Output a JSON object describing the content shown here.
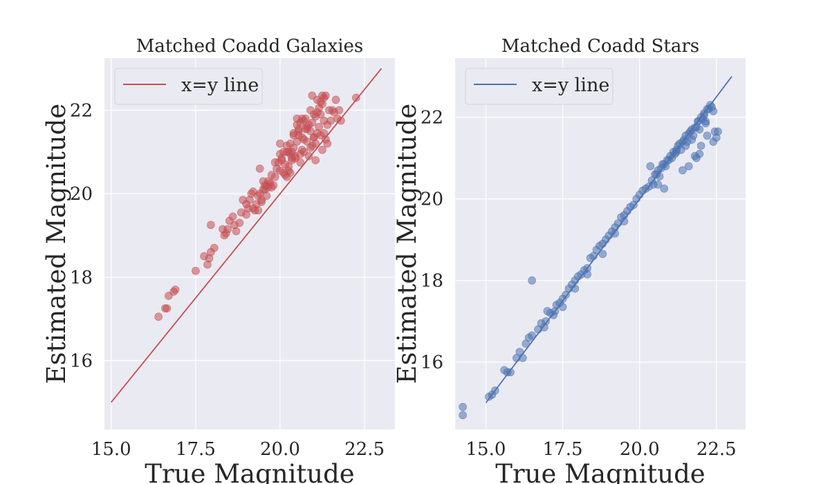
{
  "chart_data": [
    {
      "type": "scatter",
      "title": "Matched Coadd Galaxies",
      "xlabel": "True Magnitude",
      "ylabel": "Estimated Magnitude",
      "xlim": [
        14.8,
        23.4
      ],
      "ylim": [
        14.35,
        23.25
      ],
      "xticks": [
        15.0,
        17.5,
        20.0,
        22.5
      ],
      "xtick_labels": [
        "15.0",
        "17.5",
        "20.0",
        "22.5"
      ],
      "yticks": [
        16,
        18,
        20,
        22
      ],
      "ytick_labels": [
        "16",
        "18",
        "20",
        "22"
      ],
      "grid": true,
      "legend_position": "top-left",
      "reference_line": {
        "name": "x=y line",
        "x": [
          15.0,
          23.0
        ],
        "y": [
          15.0,
          23.0
        ],
        "color": "#c44e52"
      },
      "series": [
        {
          "marker_color": "#c44e52",
          "x": [
            16.4,
            16.6,
            16.65,
            16.7,
            16.85,
            16.9,
            17.5,
            17.75,
            17.85,
            17.9,
            17.95,
            18.05,
            17.95,
            18.3,
            18.35,
            18.4,
            18.45,
            18.5,
            18.6,
            18.65,
            18.7,
            18.8,
            18.85,
            18.9,
            19.0,
            19.0,
            19.05,
            19.1,
            19.15,
            19.2,
            19.2,
            19.25,
            19.3,
            19.35,
            19.4,
            19.45,
            19.5,
            19.5,
            19.55,
            19.6,
            19.6,
            19.65,
            19.7,
            19.75,
            19.8,
            19.85,
            19.9,
            19.95,
            20.0,
            20.0,
            20.05,
            20.1,
            20.15,
            20.2,
            20.2,
            20.25,
            20.3,
            20.3,
            20.35,
            20.4,
            20.45,
            20.5,
            20.55,
            20.6,
            20.65,
            20.7,
            20.75,
            20.8,
            20.85,
            20.9,
            20.95,
            21.0,
            21.05,
            21.1,
            21.15,
            21.2,
            21.25,
            21.3,
            21.35,
            21.4,
            21.5,
            21.6,
            21.7,
            20.2,
            20.4,
            20.6,
            20.8,
            21.0,
            21.2,
            20.3,
            20.5,
            20.7,
            20.9,
            21.1,
            21.3,
            20.35,
            20.55,
            20.75,
            20.95,
            21.15,
            21.45,
            20.45,
            20.65,
            20.85,
            21.05,
            21.25,
            19.85,
            20.05,
            20.25,
            19.75,
            19.65,
            19.55,
            19.45,
            19.35,
            19.4,
            20.6,
            20.95,
            21.35,
            21.8,
            22.25,
            20.0,
            20.1,
            20.15,
            20.4,
            20.5,
            20.7,
            21.0,
            21.2,
            21.25,
            21.4,
            21.55,
            21.65,
            21.75,
            20.25,
            20.35,
            20.55,
            20.65,
            20.8,
            20.9,
            21.05,
            21.1,
            21.3
          ],
          "y": [
            17.05,
            17.25,
            17.25,
            17.55,
            17.65,
            17.7,
            18.15,
            18.5,
            18.3,
            18.45,
            18.6,
            18.7,
            19.25,
            19.15,
            19.0,
            19.05,
            19.15,
            19.35,
            19.45,
            19.25,
            19.1,
            19.3,
            19.55,
            19.85,
            19.75,
            19.5,
            19.65,
            19.85,
            20.0,
            19.65,
            20.05,
            19.6,
            19.75,
            19.95,
            20.0,
            19.85,
            20.1,
            20.3,
            20.2,
            19.95,
            20.2,
            20.15,
            20.25,
            20.15,
            20.2,
            20.4,
            20.6,
            20.75,
            20.55,
            20.95,
            20.85,
            20.5,
            20.7,
            20.4,
            21.0,
            20.65,
            20.5,
            20.95,
            20.8,
            21.1,
            20.85,
            21.25,
            21.4,
            20.95,
            21.05,
            21.3,
            21.55,
            21.25,
            20.9,
            21.5,
            21.15,
            21.35,
            21.2,
            21.45,
            21.6,
            21.4,
            21.05,
            21.75,
            21.3,
            21.65,
            21.75,
            21.95,
            21.8,
            21.15,
            21.4,
            21.7,
            21.6,
            21.9,
            22.2,
            21.2,
            21.65,
            21.75,
            22.0,
            22.25,
            22.3,
            21.0,
            21.5,
            21.8,
            21.7,
            22.05,
            22.0,
            20.9,
            21.35,
            21.65,
            21.85,
            22.15,
            20.75,
            20.8,
            21.0,
            20.45,
            20.3,
            20.1,
            19.8,
            19.6,
            20.6,
            20.75,
            22.35,
            22.35,
            21.75,
            22.3,
            21.2,
            21.0,
            20.45,
            21.45,
            21.8,
            21.0,
            21.35,
            21.9,
            22.35,
            21.2,
            22.0,
            22.25,
            22.0,
            20.55,
            20.85,
            21.55,
            21.8,
            21.55,
            21.1,
            20.8,
            21.95,
            21.45
          ]
        }
      ]
    },
    {
      "type": "scatter",
      "title": "Matched Coadd Stars",
      "xlabel": "True Magnitude",
      "ylabel": "Estimated Magnitude",
      "xlim": [
        14.0,
        23.45
      ],
      "ylim": [
        14.35,
        23.45
      ],
      "xticks": [
        15.0,
        17.5,
        20.0,
        22.5
      ],
      "xtick_labels": [
        "15.0",
        "17.5",
        "20.0",
        "22.5"
      ],
      "yticks": [
        16,
        18,
        20,
        22
      ],
      "ytick_labels": [
        "16",
        "18",
        "20",
        "22"
      ],
      "grid": true,
      "legend_position": "top-left",
      "reference_line": {
        "name": "x=y line",
        "x": [
          15.0,
          23.0
        ],
        "y": [
          15.0,
          23.0
        ],
        "color": "#4c72b0"
      },
      "series": [
        {
          "marker_color": "#4c72b0",
          "x": [
            14.25,
            14.25,
            15.1,
            15.2,
            15.3,
            15.6,
            15.7,
            16.0,
            16.1,
            16.3,
            16.4,
            16.5,
            16.5,
            16.7,
            16.8,
            16.95,
            17.0,
            17.1,
            17.2,
            17.25,
            17.3,
            17.4,
            17.5,
            17.6,
            17.7,
            17.8,
            17.9,
            18.0,
            18.1,
            18.2,
            18.3,
            18.4,
            18.5,
            18.6,
            18.7,
            18.8,
            18.9,
            19.0,
            19.1,
            19.2,
            19.3,
            19.4,
            19.5,
            19.6,
            19.7,
            19.8,
            19.9,
            20.0,
            20.1,
            20.2,
            20.3,
            20.4,
            20.5,
            20.6,
            20.7,
            20.8,
            20.9,
            21.0,
            21.1,
            21.2,
            21.3,
            21.4,
            21.5,
            21.6,
            21.7,
            21.8,
            21.9,
            22.0,
            22.1,
            22.2,
            22.3,
            22.4,
            22.5,
            22.55,
            21.25,
            21.45,
            21.65,
            21.85,
            22.05,
            22.25,
            21.35,
            21.55,
            21.75,
            21.95,
            22.15,
            22.35,
            20.35,
            20.55,
            20.75,
            20.95,
            21.15,
            20.45,
            20.65,
            20.85,
            21.05,
            21.5,
            21.7,
            21.9,
            22.1,
            21.8,
            22.0,
            22.2,
            22.4,
            21.95,
            21.6,
            21.4,
            21.2,
            20.8,
            20.6,
            19.5,
            19.2,
            18.8,
            18.3,
            17.9,
            17.5,
            16.9,
            16.2,
            15.8,
            22.45,
            21.85,
            22.15
          ],
          "y": [
            14.7,
            14.9,
            15.15,
            15.2,
            15.3,
            15.8,
            15.75,
            16.1,
            16.25,
            16.45,
            16.6,
            16.65,
            18.0,
            16.8,
            16.95,
            17.0,
            17.25,
            17.2,
            17.15,
            17.25,
            17.4,
            17.45,
            17.55,
            17.65,
            17.8,
            17.9,
            18.0,
            18.1,
            18.15,
            18.25,
            18.3,
            18.55,
            18.6,
            18.75,
            18.85,
            18.9,
            19.0,
            19.1,
            19.2,
            19.3,
            19.4,
            19.55,
            19.6,
            19.7,
            19.8,
            19.85,
            20.0,
            20.1,
            20.2,
            20.25,
            20.3,
            20.45,
            20.6,
            20.7,
            20.75,
            20.85,
            20.95,
            21.05,
            21.15,
            21.2,
            21.35,
            21.4,
            21.55,
            21.6,
            21.7,
            21.75,
            21.9,
            22.0,
            22.1,
            22.2,
            22.3,
            22.15,
            21.5,
            21.65,
            21.3,
            21.45,
            21.65,
            21.75,
            21.95,
            22.2,
            21.2,
            21.4,
            21.55,
            21.7,
            21.85,
            22.25,
            20.8,
            20.6,
            20.85,
            20.95,
            21.1,
            20.35,
            20.55,
            20.8,
            21.0,
            21.3,
            21.45,
            21.9,
            22.05,
            21.05,
            21.3,
            21.55,
            21.4,
            21.1,
            20.8,
            20.7,
            21.15,
            20.25,
            20.35,
            19.45,
            19.15,
            18.65,
            18.15,
            17.8,
            17.35,
            16.85,
            16.1,
            15.75,
            21.65,
            21.0,
            21.9
          ]
        }
      ]
    }
  ]
}
